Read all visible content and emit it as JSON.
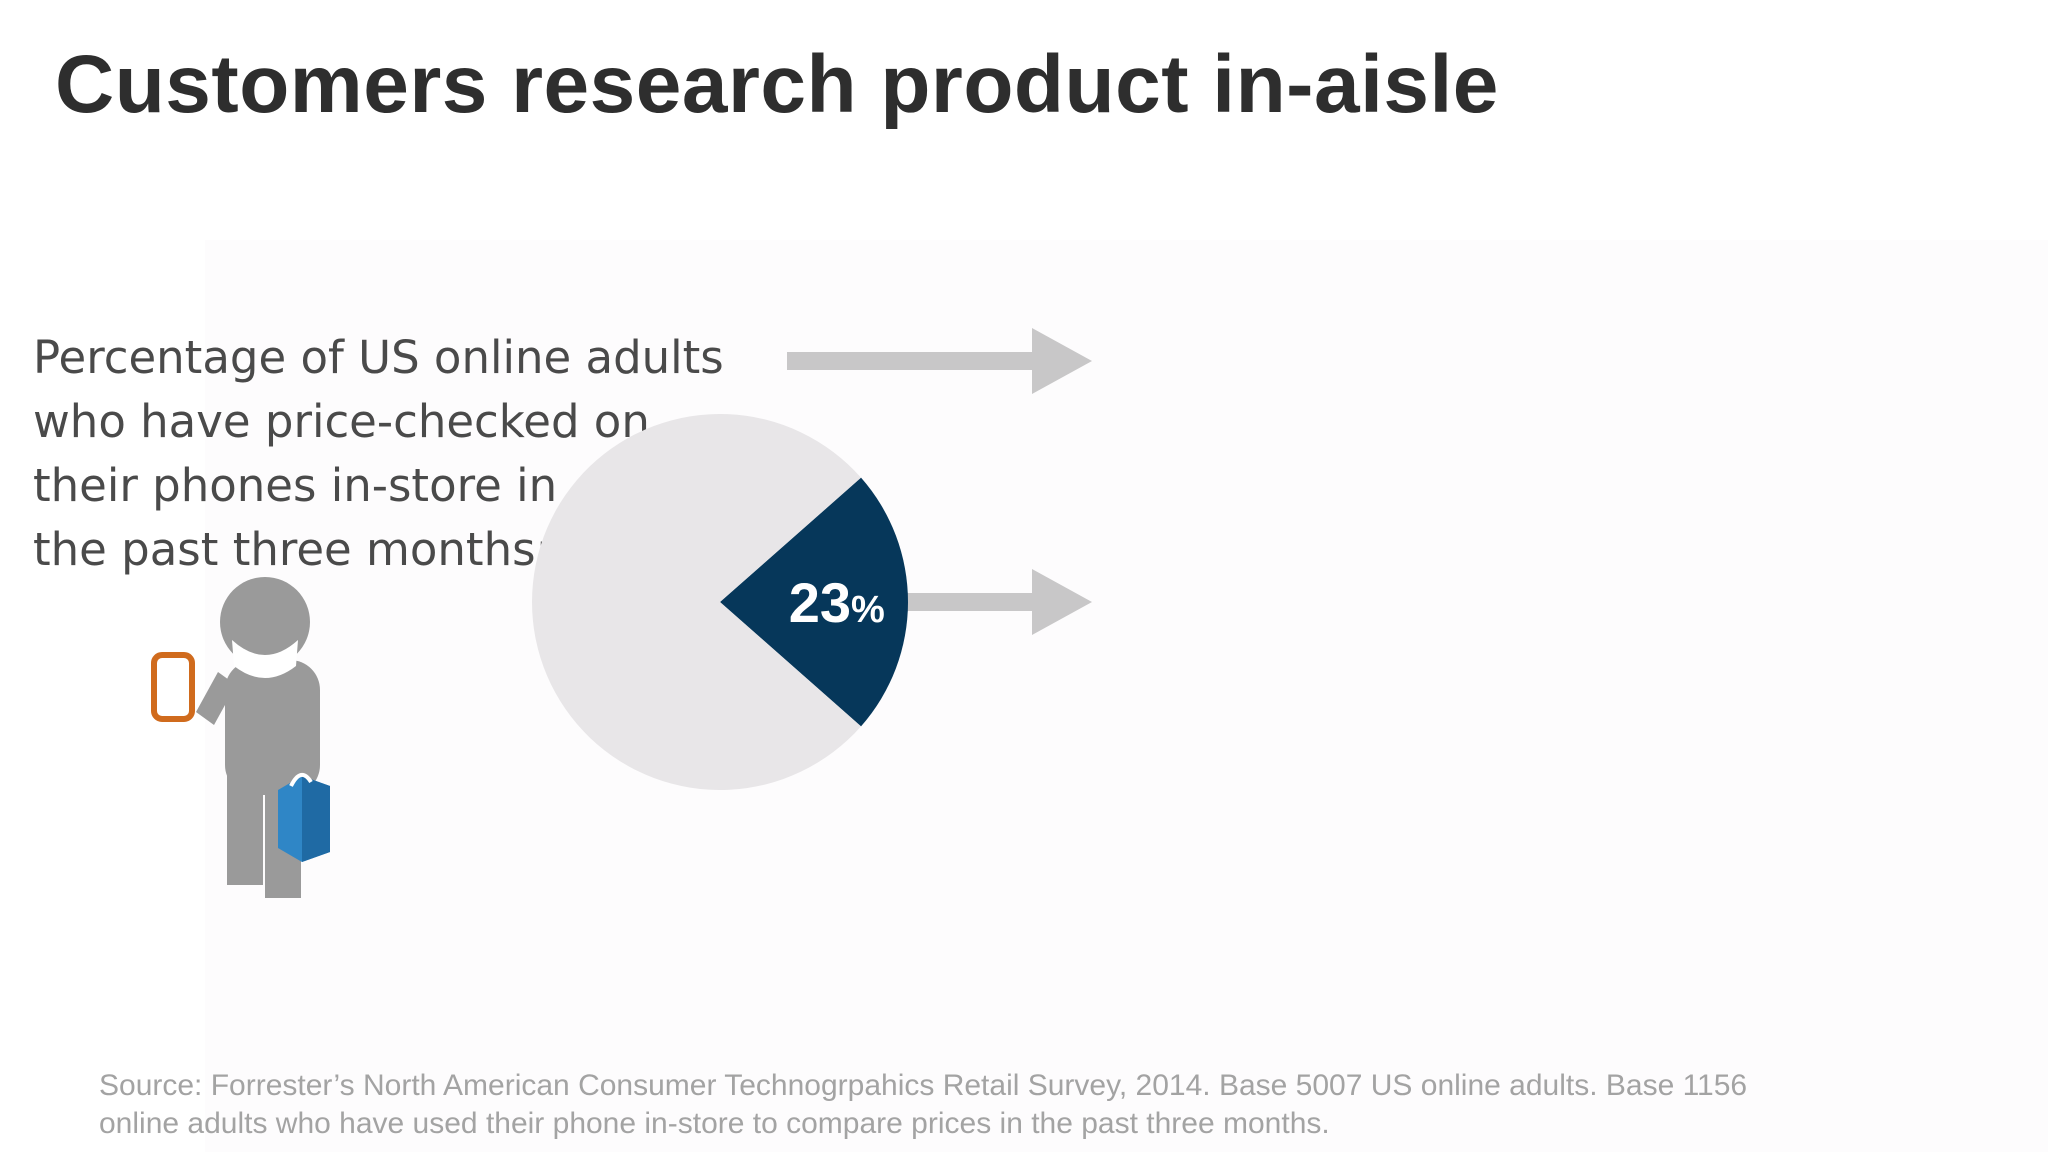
{
  "slide": {
    "title": "Customers research product in-aisle",
    "question_lines": [
      "Percentage of US online adults",
      "who have price-checked on",
      "their phones in-store in",
      "the past three months:"
    ],
    "source_lines": [
      "Source: Forrester’s North American Consumer Technogrpahics Retail Survey, 2014. Base 5007 US online adults. Base 1156",
      "online adults who have used their phone in-store to compare prices in the past three months."
    ]
  },
  "icons": {
    "person": "person-with-phone-and-shopping-bag-icon",
    "arrow": "right-arrow-icon"
  },
  "chart_data": {
    "type": "pie",
    "title": "",
    "slices": [
      {
        "name": "",
        "value": 23,
        "label_number": "23",
        "label_unit": "%",
        "color": "#06375a",
        "highlight": true
      },
      {
        "name": "",
        "value": 77,
        "color": "#e8e6e8",
        "highlight": false
      }
    ],
    "label_color": "#ffffff"
  },
  "colors": {
    "title": "#2e2e2e",
    "body_text": "#4a4a4a",
    "source_text": "#a3a3a3",
    "arrow": "#c8c7c8",
    "figure_gray": "#9a9a9a",
    "phone": "#d06b1d",
    "bag": "#2f86c6"
  }
}
